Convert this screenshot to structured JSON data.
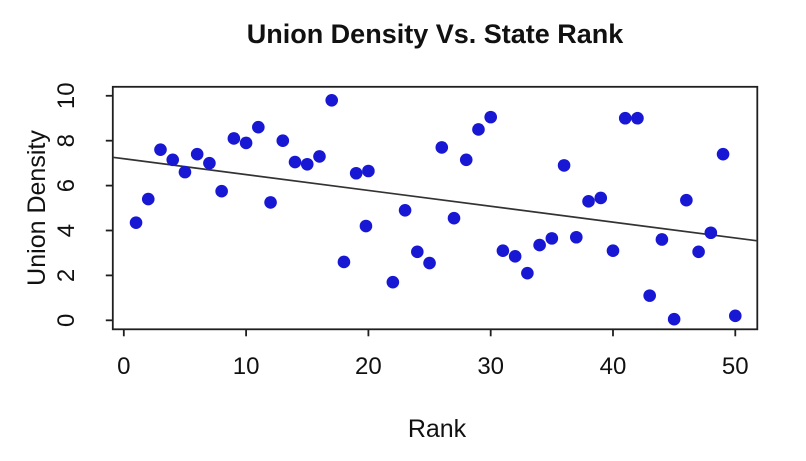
{
  "figure": {
    "background": "#ffffff"
  },
  "chart_data": {
    "type": "scatter",
    "title": "Union Density Vs. State Rank",
    "xlabel": "Rank",
    "ylabel": "Union Density",
    "xlim": [
      -0.9,
      51.8
    ],
    "ylim": [
      -0.4,
      10.4
    ],
    "xticks": [
      0,
      10,
      20,
      30,
      40,
      50
    ],
    "yticks": [
      0,
      2,
      4,
      6,
      8,
      10
    ],
    "grid": false,
    "legend": null,
    "point_color": "#1717d4",
    "trend_line_color": "#333333",
    "axis_color": "#1f1f1f",
    "text_color": "#111111",
    "points": [
      [
        1,
        4.35
      ],
      [
        2,
        5.4
      ],
      [
        3,
        7.6
      ],
      [
        4,
        7.15
      ],
      [
        5,
        6.6
      ],
      [
        6,
        7.4
      ],
      [
        7,
        7.0
      ],
      [
        8,
        5.75
      ],
      [
        9,
        8.1
      ],
      [
        10,
        7.9
      ],
      [
        11,
        8.6
      ],
      [
        12,
        5.25
      ],
      [
        13,
        8.0
      ],
      [
        14,
        7.05
      ],
      [
        15,
        6.95
      ],
      [
        16,
        7.3
      ],
      [
        17,
        9.8
      ],
      [
        18,
        2.6
      ],
      [
        19,
        6.55
      ],
      [
        20,
        6.65
      ],
      [
        19.8,
        4.2
      ],
      [
        22,
        1.7
      ],
      [
        23,
        4.9
      ],
      [
        24,
        3.05
      ],
      [
        25,
        2.55
      ],
      [
        26,
        7.7
      ],
      [
        27,
        4.55
      ],
      [
        28,
        7.15
      ],
      [
        29,
        8.5
      ],
      [
        30,
        9.05
      ],
      [
        31,
        3.1
      ],
      [
        32,
        2.85
      ],
      [
        33,
        2.1
      ],
      [
        34,
        3.35
      ],
      [
        35,
        3.65
      ],
      [
        36,
        6.9
      ],
      [
        37,
        3.7
      ],
      [
        38,
        5.3
      ],
      [
        39,
        5.45
      ],
      [
        40,
        3.1
      ],
      [
        41,
        9.0
      ],
      [
        42,
        9.0
      ],
      [
        43,
        1.1
      ],
      [
        44,
        3.6
      ],
      [
        45,
        0.05
      ],
      [
        46,
        5.35
      ],
      [
        47,
        3.05
      ],
      [
        48,
        3.9
      ],
      [
        49,
        7.4
      ],
      [
        50,
        0.2
      ]
    ],
    "trend_line": {
      "x1": -0.9,
      "y1": 7.26,
      "x2": 51.8,
      "y2": 3.54
    }
  }
}
